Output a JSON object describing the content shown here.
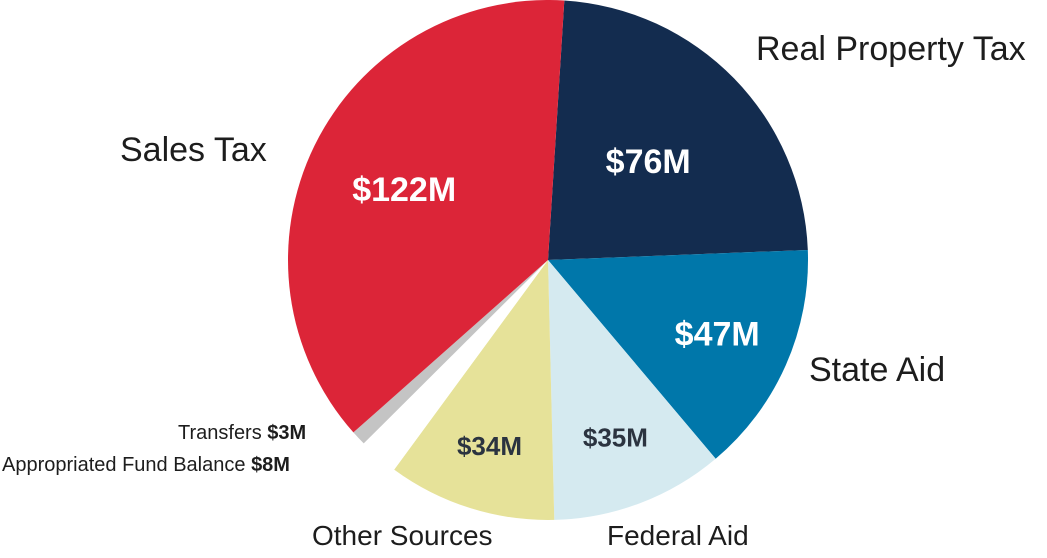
{
  "chart_data": {
    "type": "pie",
    "title": "",
    "slices": [
      {
        "name": "Real Property Tax",
        "value": 76,
        "value_label": "$76M",
        "color": "#132c4f",
        "label_color": "#ffffff"
      },
      {
        "name": "State Aid",
        "value": 47,
        "value_label": "$47M",
        "color": "#0077aa",
        "label_color": "#ffffff"
      },
      {
        "name": "Federal Aid",
        "value": 35,
        "value_label": "$35M",
        "color": "#d5eaf0",
        "label_color": "#2b3440"
      },
      {
        "name": "Other Sources",
        "value": 34,
        "value_label": "$34M",
        "color": "#e6e299",
        "label_color": "#2b3440"
      },
      {
        "name": "Appropriated Fund Balance",
        "value": 8,
        "value_label": "$8M",
        "color": "#ffffff",
        "label_color": "#1d1d1d"
      },
      {
        "name": "Transfers",
        "value": 3,
        "value_label": "$3M",
        "color": "#c4c4c4",
        "label_color": "#1d1d1d"
      },
      {
        "name": "Sales Tax",
        "value": 122,
        "value_label": "$122M",
        "color": "#dc2538",
        "label_color": "#ffffff"
      }
    ]
  }
}
